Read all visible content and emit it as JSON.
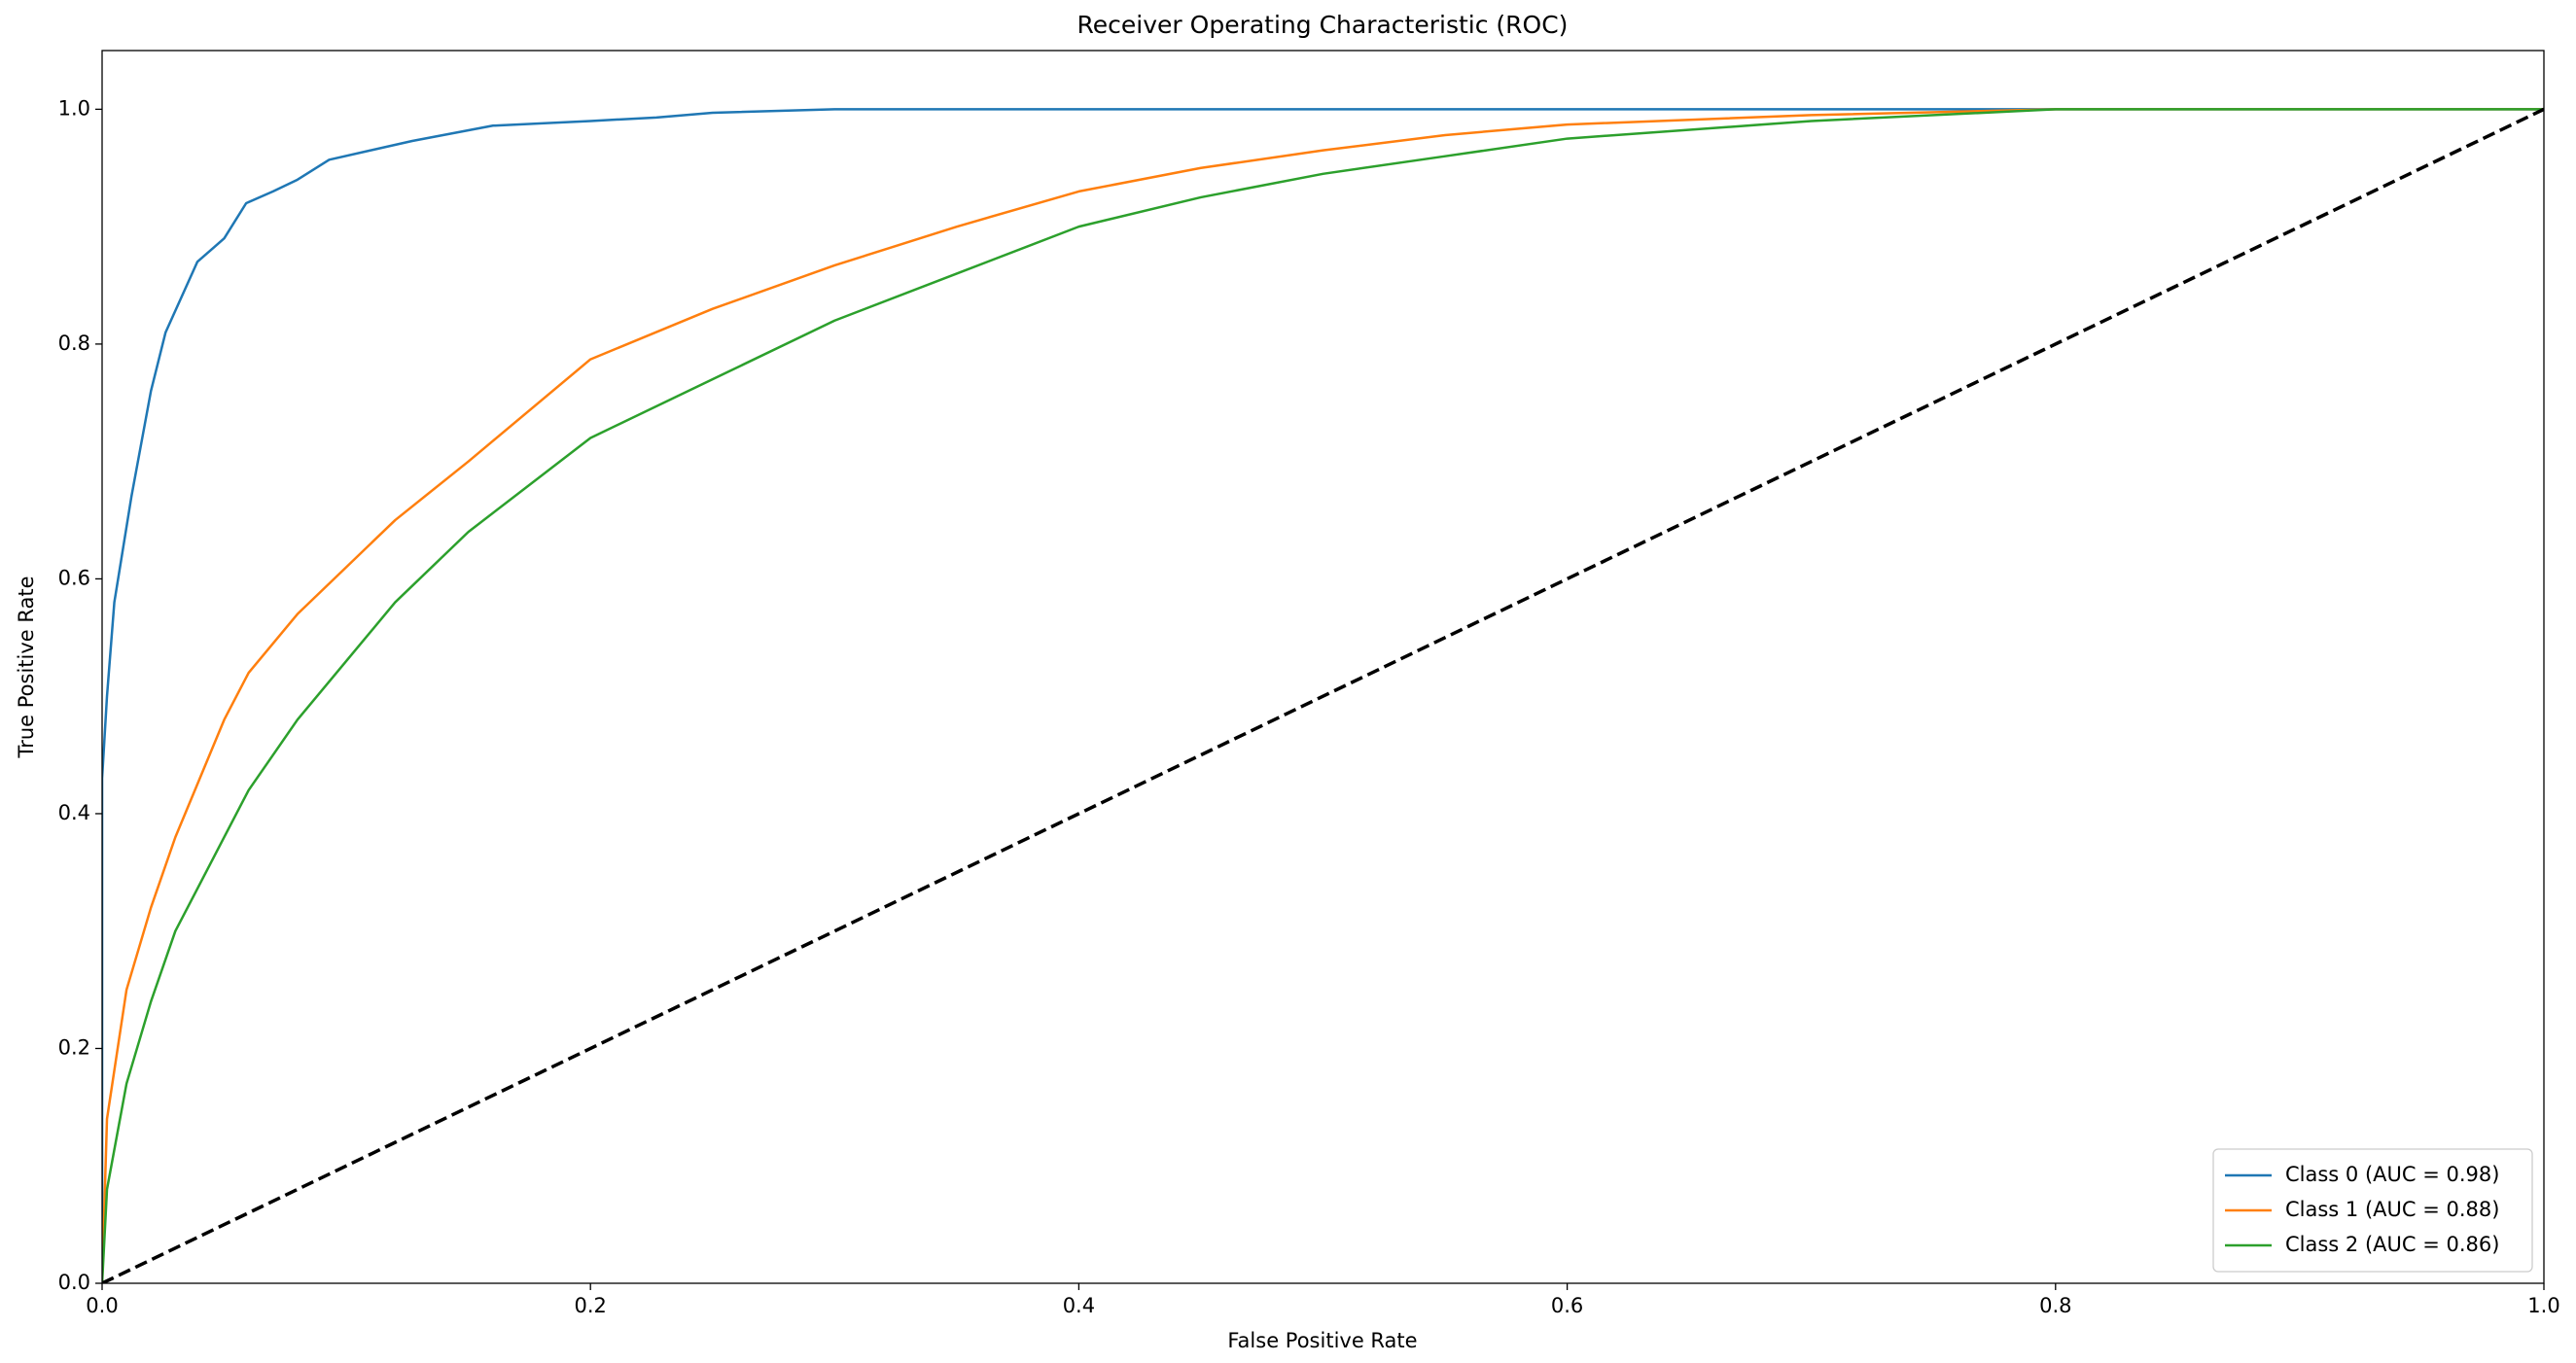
{
  "chart_data": {
    "type": "line",
    "title": "Receiver Operating Characteristic (ROC)",
    "xlabel": "False Positive Rate",
    "ylabel": "True Positive Rate",
    "xlim": [
      0,
      1
    ],
    "ylim": [
      0,
      1.05
    ],
    "xticks": [
      {
        "value": 0,
        "label": "0.0"
      },
      0.2,
      0.4,
      0.6,
      0.8,
      {
        "value": 1,
        "label": "1.0"
      }
    ],
    "yticks": [
      {
        "value": 0,
        "label": "0.0"
      },
      0.2,
      0.4,
      0.6,
      0.8,
      {
        "value": 1,
        "label": "1.0"
      }
    ],
    "legend": "lower right",
    "series": [
      {
        "name": "Class 0 (AUC = 0.98)",
        "color": "#1f77b4",
        "x": [
          0,
          0,
          0.002,
          0.005,
          0.012,
          0.02,
          0.026,
          0.039,
          0.05,
          0.059,
          0.07,
          0.08,
          0.093,
          0.11,
          0.127,
          0.16,
          0.2,
          0.227,
          0.25,
          0.3,
          1
        ],
        "values": [
          0,
          0.43,
          0.5,
          0.58,
          0.67,
          0.76,
          0.81,
          0.87,
          0.89,
          0.92,
          0.93,
          0.94,
          0.957,
          0.965,
          0.973,
          0.986,
          0.99,
          0.993,
          0.997,
          1,
          1
        ]
      },
      {
        "name": "Class 1 (AUC = 0.88)",
        "color": "#ff7f0e",
        "x": [
          0,
          0.002,
          0.01,
          0.02,
          0.03,
          0.04,
          0.05,
          0.06,
          0.08,
          0.1,
          0.12,
          0.15,
          0.2,
          0.25,
          0.3,
          0.35,
          0.4,
          0.45,
          0.5,
          0.55,
          0.6,
          0.7,
          0.8,
          1
        ],
        "values": [
          0,
          0.14,
          0.25,
          0.32,
          0.38,
          0.43,
          0.48,
          0.52,
          0.57,
          0.61,
          0.65,
          0.7,
          0.787,
          0.83,
          0.867,
          0.9,
          0.93,
          0.95,
          0.965,
          0.978,
          0.987,
          0.995,
          1,
          1
        ]
      },
      {
        "name": "Class 2 (AUC = 0.86)",
        "color": "#2ca02c",
        "x": [
          0,
          0.002,
          0.01,
          0.02,
          0.03,
          0.04,
          0.05,
          0.06,
          0.08,
          0.1,
          0.12,
          0.15,
          0.2,
          0.25,
          0.3,
          0.35,
          0.4,
          0.45,
          0.5,
          0.55,
          0.6,
          0.7,
          0.8,
          1
        ],
        "values": [
          0,
          0.08,
          0.17,
          0.24,
          0.3,
          0.34,
          0.38,
          0.42,
          0.48,
          0.53,
          0.58,
          0.64,
          0.72,
          0.77,
          0.82,
          0.86,
          0.9,
          0.925,
          0.945,
          0.96,
          0.975,
          0.99,
          1,
          1
        ]
      },
      {
        "color": "#000000",
        "dashed": true,
        "x": [
          0,
          1
        ],
        "values": [
          0,
          1
        ]
      }
    ]
  }
}
